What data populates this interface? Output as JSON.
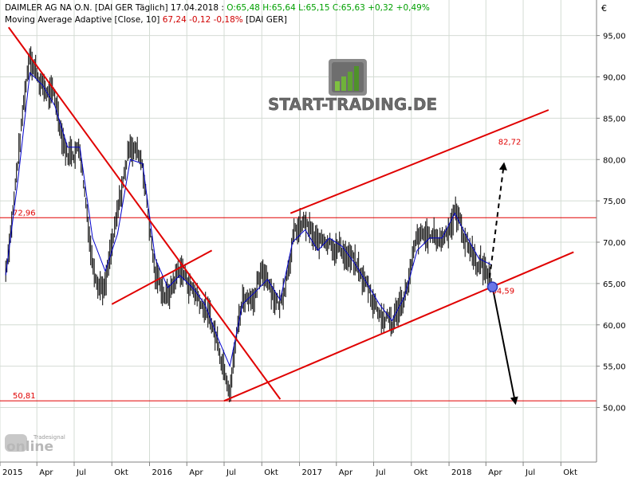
{
  "header": {
    "line1_prefix": "DAIMLER AG NA O.N. [DAI GER  Täglich] 17.04.2018 : ",
    "line1_values": "O:65,48 H:65,64 L:65,15 C:65,63 +0,32 +0,49%",
    "line2_prefix": "Moving Average Adaptive [Close, 10] ",
    "line2_values": "67,24 -0,12 -0,18%",
    "line2_suffix": " [DAI GER]"
  },
  "currency_symbol": "€",
  "logo": {
    "text": "START-TRADING.DE",
    "icon": "rising-bars-logo-icon"
  },
  "watermark": {
    "brand": "Tradesignal",
    "text": "online"
  },
  "colors": {
    "price_bars": "#000000",
    "moving_average": "#0000cc",
    "trendlines": "#e00000",
    "horizontal_levels": "#e00000",
    "grid": "#d4dcd4",
    "forecast_arrows": "#000000",
    "marker_fill": "#6a76e8"
  },
  "chart_data": {
    "type": "line",
    "title": "DAIMLER AG NA O.N.",
    "xlabel": "",
    "ylabel": "€",
    "ylim": [
      49.0,
      97.5
    ],
    "grid": true,
    "x_ticks": [
      "2015",
      "Apr",
      "Jul",
      "Okt",
      "2016",
      "Apr",
      "Jul",
      "Okt",
      "2017",
      "Apr",
      "Jul",
      "Okt",
      "2018",
      "Apr",
      "Jul",
      "Okt"
    ],
    "y_ticks": [
      50,
      55,
      60,
      65,
      70,
      75,
      80,
      85,
      90,
      95
    ],
    "y_tick_labels": [
      "50,00",
      "55,00",
      "60,00",
      "65,00",
      "70,00",
      "75,00",
      "80,00",
      "85,00",
      "90,00",
      "95,00"
    ],
    "series": [
      {
        "style": "bars",
        "points": [
          [
            "2015-01",
            66.5
          ],
          [
            "2015-02",
            80.5
          ],
          [
            "2015-03",
            93.5
          ],
          [
            "2015-04",
            89.0
          ],
          [
            "2015-05",
            87.0
          ],
          [
            "2015-06",
            81.0
          ],
          [
            "2015-07",
            82.0
          ],
          [
            "2015-08",
            68.0
          ],
          [
            "2015-09",
            65.0
          ],
          [
            "2015-10",
            72.5
          ],
          [
            "2015-11",
            82.5
          ],
          [
            "2015-12",
            80.0
          ],
          [
            "2016-01",
            66.0
          ],
          [
            "2016-02",
            63.5
          ],
          [
            "2016-03",
            67.0
          ],
          [
            "2016-04",
            64.5
          ],
          [
            "2016-05",
            62.5
          ],
          [
            "2016-06",
            58.0
          ],
          [
            "2016-07",
            54.0
          ],
          [
            "2016-08",
            63.5
          ],
          [
            "2016-09",
            64.5
          ],
          [
            "2016-10",
            66.0
          ],
          [
            "2016-11",
            62.5
          ],
          [
            "2016-12",
            71.0
          ],
          [
            "2017-01",
            72.0
          ],
          [
            "2017-02",
            69.0
          ],
          [
            "2017-03",
            71.0
          ],
          [
            "2017-04",
            69.5
          ],
          [
            "2017-05",
            67.0
          ],
          [
            "2017-06",
            64.5
          ],
          [
            "2017-07",
            62.0
          ],
          [
            "2017-08",
            60.0
          ],
          [
            "2017-09",
            64.0
          ],
          [
            "2017-10",
            69.5
          ],
          [
            "2017-11",
            70.5
          ],
          [
            "2017-12",
            70.5
          ],
          [
            "2018-01",
            74.0
          ],
          [
            "2018-02",
            70.0
          ],
          [
            "2018-03",
            67.5
          ],
          [
            "2018-04",
            65.63
          ]
        ]
      },
      {
        "name": "Moving Average Adaptive [Close, 10]",
        "style": "line",
        "points": [
          [
            "2015-01",
            66.0
          ],
          [
            "2015-02",
            78.0
          ],
          [
            "2015-03",
            90.5
          ],
          [
            "2015-04",
            89.0
          ],
          [
            "2015-05",
            86.5
          ],
          [
            "2015-06",
            81.5
          ],
          [
            "2015-07",
            81.5
          ],
          [
            "2015-08",
            70.5
          ],
          [
            "2015-09",
            66.5
          ],
          [
            "2015-10",
            71.0
          ],
          [
            "2015-11",
            80.0
          ],
          [
            "2015-12",
            79.5
          ],
          [
            "2016-01",
            68.0
          ],
          [
            "2016-02",
            64.5
          ],
          [
            "2016-03",
            66.0
          ],
          [
            "2016-04",
            64.5
          ],
          [
            "2016-05",
            62.5
          ],
          [
            "2016-06",
            58.5
          ],
          [
            "2016-07",
            55.0
          ],
          [
            "2016-08",
            62.5
          ],
          [
            "2016-09",
            64.0
          ],
          [
            "2016-10",
            65.5
          ],
          [
            "2016-11",
            63.0
          ],
          [
            "2016-12",
            70.0
          ],
          [
            "2017-01",
            71.5
          ],
          [
            "2017-02",
            69.0
          ],
          [
            "2017-03",
            70.5
          ],
          [
            "2017-04",
            69.5
          ],
          [
            "2017-05",
            67.5
          ],
          [
            "2017-06",
            65.0
          ],
          [
            "2017-07",
            62.5
          ],
          [
            "2017-08",
            60.5
          ],
          [
            "2017-09",
            63.5
          ],
          [
            "2017-10",
            69.0
          ],
          [
            "2017-11",
            70.5
          ],
          [
            "2017-12",
            70.5
          ],
          [
            "2018-01",
            73.5
          ],
          [
            "2018-02",
            70.5
          ],
          [
            "2018-03",
            68.0
          ],
          [
            "2018-04",
            67.24
          ]
        ]
      }
    ],
    "trendlines": [
      {
        "from": [
          "2015-01-22",
          96.0
        ],
        "to": [
          "2016-11-15",
          51.0
        ]
      },
      {
        "from": [
          "2015-10-01",
          62.5
        ],
        "to": [
          "2016-06-01",
          69.0
        ]
      },
      {
        "from": [
          "2016-07-01",
          50.8
        ],
        "to": [
          "2018-11-01",
          68.8
        ]
      },
      {
        "from": [
          "2016-12-10",
          73.5
        ],
        "to": [
          "2018-09-01",
          86.0
        ]
      }
    ],
    "levels": [
      {
        "value": 72.96,
        "label": "72,96"
      },
      {
        "value": 50.81,
        "label": "50,81"
      }
    ],
    "annotations": [
      {
        "label": "82,72",
        "x": "2018-05-01",
        "y": 81.8
      },
      {
        "label": "64,59",
        "x": "2018-04-15",
        "y": 63.8
      }
    ],
    "marker": {
      "x": "2018-04-17",
      "y": 64.59
    },
    "forecast_arrows": [
      {
        "style": "dashed",
        "from": [
          "2018-04-10",
          65.7
        ],
        "to": [
          "2018-05-15",
          79.5
        ]
      },
      {
        "style": "solid",
        "from": [
          "2018-04-17",
          64.6
        ],
        "to": [
          "2018-06-12",
          50.5
        ]
      }
    ]
  }
}
